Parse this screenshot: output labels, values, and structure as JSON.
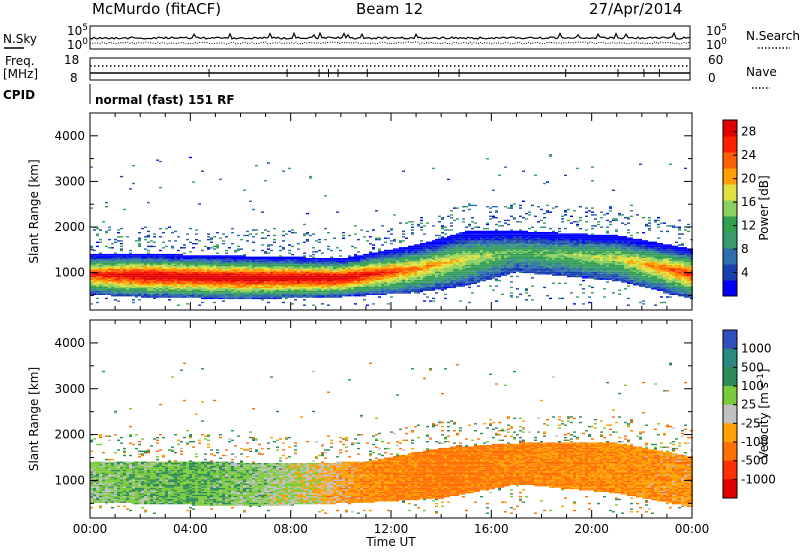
{
  "header": {
    "station": "McMurdo (fitACF)",
    "beam": "Beam 12",
    "date": "27/Apr/2014"
  },
  "top_panels": {
    "nsky_label": "N.Sky",
    "nsky_ticks": [
      "10^5",
      "10^0"
    ],
    "nsearch_label": "N.Search",
    "nsearch_ticks": [
      "10^5",
      "10^0"
    ],
    "freq_label": "Freq.",
    "freq_unit": "[MHz]",
    "freq_ticks": [
      "18",
      "8"
    ],
    "nave_label": "Nave",
    "nave_ticks": [
      "60",
      "0"
    ],
    "cpid_label": "CPID",
    "cpid_text": "normal (fast) 151 RF"
  },
  "chart_data": [
    {
      "type": "heatmap",
      "title": "",
      "parameter": "Power",
      "xlabel": "Time UT",
      "ylabel": "Slant Range [km]",
      "x_ticks": [
        "00:00",
        "04:00",
        "08:00",
        "12:00",
        "16:00",
        "20:00",
        "00:00"
      ],
      "y_ticks": [
        1000,
        2000,
        3000,
        4000
      ],
      "ylim": [
        180,
        4500
      ],
      "xlim_hours": [
        0,
        24
      ],
      "colorbar": {
        "label": "Power [dB]",
        "ticks": [
          4,
          8,
          12,
          16,
          20,
          24,
          28
        ],
        "range": [
          0,
          30
        ],
        "colors": [
          "#0000ff",
          "#1a3fb0",
          "#2f6fb0",
          "#3a9a70",
          "#33a050",
          "#8bd060",
          "#e0e040",
          "#ffa000",
          "#ff6000",
          "#ff2000",
          "#e00000"
        ]
      },
      "approx_profile": [
        {
          "hour": 0,
          "band": [
            500,
            1400
          ],
          "peak": 24
        },
        {
          "hour": 2,
          "band": [
            450,
            1400
          ],
          "peak": 28
        },
        {
          "hour": 6,
          "band": [
            400,
            1350
          ],
          "peak": 28
        },
        {
          "hour": 10,
          "band": [
            450,
            1300
          ],
          "peak": 28
        },
        {
          "hour": 13,
          "band": [
            550,
            1600
          ],
          "peak": 20
        },
        {
          "hour": 15,
          "band": [
            700,
            1900
          ],
          "peak": 16
        },
        {
          "hour": 17,
          "band": [
            1000,
            1900
          ],
          "peak": 12
        },
        {
          "hour": 21,
          "band": [
            800,
            1800
          ],
          "peak": 16
        },
        {
          "hour": 24,
          "band": [
            400,
            1500
          ],
          "peak": 24
        }
      ]
    },
    {
      "type": "heatmap",
      "title": "",
      "parameter": "Velocity",
      "xlabel": "Time UT",
      "ylabel": "Slant Range [km]",
      "x_ticks": [
        "00:00",
        "04:00",
        "08:00",
        "12:00",
        "16:00",
        "20:00",
        "00:00"
      ],
      "y_ticks": [
        1000,
        2000,
        3000,
        4000
      ],
      "ylim": [
        180,
        4500
      ],
      "xlim_hours": [
        0,
        24
      ],
      "colorbar": {
        "label": "Velocity [m s^-1]",
        "ticks": [
          1000,
          500,
          100,
          25,
          -25,
          -100,
          -500,
          -1000
        ],
        "colors": [
          "#3050c0",
          "#2a8a80",
          "#2e8b57",
          "#7acb3a",
          "#c0c0c0",
          "#ffa000",
          "#ff7000",
          "#ff3000",
          "#e00000"
        ]
      },
      "approx_profile": [
        {
          "hour": 0,
          "band": [
            500,
            1400
          ],
          "velocity": 50
        },
        {
          "hour": 4,
          "band": [
            450,
            1400
          ],
          "velocity": 100
        },
        {
          "hour": 8,
          "band": [
            450,
            1350
          ],
          "velocity": 25
        },
        {
          "hour": 11,
          "band": [
            500,
            1400
          ],
          "velocity": -100
        },
        {
          "hour": 14,
          "band": [
            600,
            1700
          ],
          "velocity": -150
        },
        {
          "hour": 17,
          "band": [
            900,
            1800
          ],
          "velocity": -120
        },
        {
          "hour": 21,
          "band": [
            700,
            1800
          ],
          "velocity": -100
        },
        {
          "hour": 24,
          "band": [
            400,
            1500
          ],
          "velocity": -80
        }
      ]
    }
  ]
}
